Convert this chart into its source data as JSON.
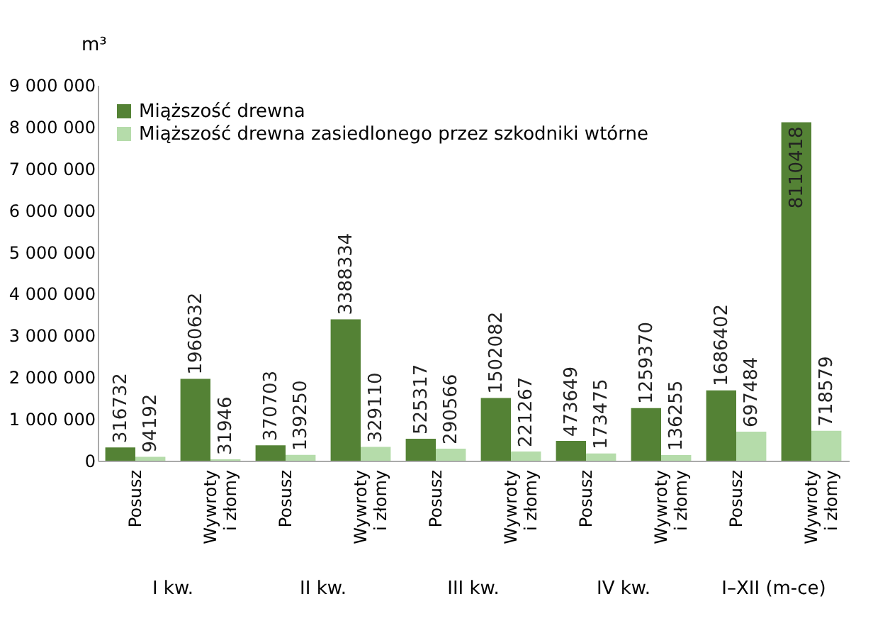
{
  "chart_data": {
    "type": "bar",
    "ylabel": "m³",
    "categories": [
      "Posusz",
      "Wywroty i złomy",
      "Posusz",
      "Wywroty i złomy",
      "Posusz",
      "Wywroty i złomy",
      "Posusz",
      "Wywroty i złomy",
      "Posusz",
      "Wywroty i złomy"
    ],
    "annotations": [
      "I kw.",
      "II kw.",
      "III kw.",
      "IV kw.",
      "I–XII (m-ce)"
    ],
    "series": [
      {
        "name": "Miąższość drewna",
        "color": "#548235",
        "values": [
          316732,
          1960632,
          370703,
          3388334,
          525317,
          1502082,
          473649,
          1259370,
          1686402,
          8110418
        ]
      },
      {
        "name": "Miąższość drewna zasiedlonego przez szkodniki wtórne",
        "color": "#b5dcaa",
        "values": [
          94192,
          31946,
          139250,
          329110,
          290566,
          221267,
          173475,
          136255,
          697484,
          718579
        ]
      }
    ],
    "ylim": [
      0,
      9000000
    ],
    "yticks": [
      {
        "value": 0,
        "label": "0"
      },
      {
        "value": 1000000,
        "label": "1 000 000"
      },
      {
        "value": 2000000,
        "label": "2 000 000"
      },
      {
        "value": 3000000,
        "label": "3 000 000"
      },
      {
        "value": 4000000,
        "label": "4 000 000"
      },
      {
        "value": 5000000,
        "label": "5 000 000"
      },
      {
        "value": 6000000,
        "label": "6 000 000"
      },
      {
        "value": 7000000,
        "label": "7 000 000"
      },
      {
        "value": 8000000,
        "label": "8 000 000"
      },
      {
        "value": 9000000,
        "label": "9 000 000"
      }
    ],
    "data_labels": true,
    "grid": false,
    "legend": "top left"
  }
}
